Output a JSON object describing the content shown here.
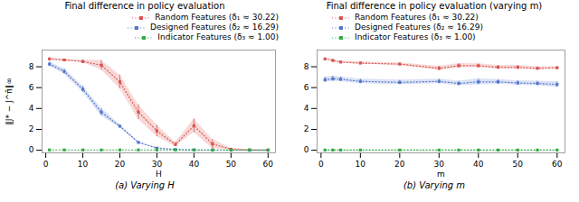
{
  "chart_data": [
    {
      "type": "line",
      "title": "Final difference in policy evaluation",
      "xlabel": "H",
      "ylabel": "‖J* − J^π̂‖∞",
      "caption": "(a) Varying H",
      "x": [
        1,
        5,
        10,
        15,
        20,
        25,
        30,
        35,
        40,
        45,
        50,
        55,
        60
      ],
      "series": [
        {
          "name": "Random Features (δ₁ ≈ 30.22)",
          "color": "#d9534f",
          "values": [
            8.75,
            8.65,
            8.5,
            8.15,
            6.55,
            3.65,
            1.85,
            0.55,
            2.35,
            0.6,
            0.1,
            0.03,
            0.01
          ],
          "errors": [
            0.1,
            0.08,
            0.12,
            0.45,
            0.65,
            0.7,
            0.55,
            0.2,
            0.65,
            0.45,
            0.08,
            0.02,
            0.005
          ]
        },
        {
          "name": "Designed Features (δ₂ ≈ 16.29)",
          "color": "#5577cc",
          "values": [
            8.25,
            7.55,
            5.85,
            3.65,
            2.3,
            0.75,
            0.2,
            0.07,
            0.03,
            0.01,
            0.005,
            0.002,
            0.001
          ],
          "errors": [
            0.2,
            0.25,
            0.3,
            0.35,
            0.15,
            0.08,
            0.04,
            0.02,
            0.01,
            0.005,
            0.002,
            0.001,
            0.0005
          ]
        },
        {
          "name": "Indicator Features (δ₃ ≈ 1.00)",
          "color": "#33aa44",
          "values": [
            0.03,
            0.03,
            0.03,
            0.03,
            0.03,
            0.03,
            0.03,
            0.03,
            0.03,
            0.03,
            0.03,
            0.03,
            0.03
          ],
          "errors": [
            0.005,
            0.005,
            0.005,
            0.005,
            0.005,
            0.005,
            0.005,
            0.005,
            0.005,
            0.005,
            0.005,
            0.005,
            0.005
          ]
        }
      ],
      "xlim": [
        -1,
        62
      ],
      "ylim": [
        -0.25,
        9.6
      ],
      "xticks": [
        0,
        10,
        20,
        30,
        40,
        50,
        60
      ],
      "yticks": [
        0,
        2,
        4,
        6,
        8
      ],
      "marker": "square",
      "line_style": "dotted",
      "legend": "upper right"
    },
    {
      "type": "line",
      "title": "Final difference in policy evaluation (varying m)",
      "xlabel": "m",
      "caption": "(b) Varying m",
      "x": [
        1,
        3,
        5,
        10,
        20,
        30,
        35,
        40,
        45,
        50,
        55,
        60
      ],
      "series": [
        {
          "name": "Random Features (δ₁ ≈ 30.22)",
          "color": "#d9534f",
          "values": [
            8.75,
            8.6,
            8.45,
            8.35,
            8.25,
            7.85,
            8.1,
            8.1,
            7.95,
            7.95,
            7.85,
            7.9
          ],
          "errors": [
            0.08,
            0.1,
            0.1,
            0.12,
            0.12,
            0.2,
            0.2,
            0.18,
            0.18,
            0.18,
            0.15,
            0.12
          ]
        },
        {
          "name": "Designed Features (δ₂ ≈ 16.29)",
          "color": "#5577cc",
          "values": [
            6.75,
            6.85,
            6.8,
            6.6,
            6.5,
            6.6,
            6.4,
            6.55,
            6.55,
            6.45,
            6.4,
            6.3
          ],
          "errors": [
            0.25,
            0.25,
            0.22,
            0.22,
            0.22,
            0.22,
            0.22,
            0.28,
            0.22,
            0.22,
            0.22,
            0.28
          ]
        },
        {
          "name": "Indicator Features (δ₃ ≈ 1.00)",
          "color": "#33aa44",
          "values": [
            0.02,
            0.02,
            0.02,
            0.02,
            0.02,
            0.02,
            0.02,
            0.02,
            0.02,
            0.02,
            0.02,
            0.02
          ],
          "errors": [
            0.005,
            0.005,
            0.005,
            0.005,
            0.005,
            0.005,
            0.005,
            0.005,
            0.005,
            0.005,
            0.005,
            0.005
          ]
        }
      ],
      "xlim": [
        -1,
        62
      ],
      "ylim": [
        -0.25,
        9.6
      ],
      "xticks": [
        0,
        10,
        20,
        30,
        40,
        50,
        60
      ],
      "yticks": [
        0,
        2,
        4,
        6,
        8
      ],
      "marker": "square",
      "line_style": "dotted",
      "legend": "center left"
    }
  ]
}
